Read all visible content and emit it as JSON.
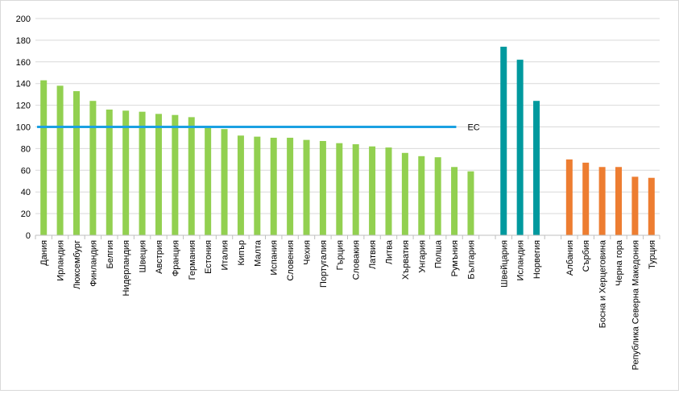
{
  "chart_data": {
    "type": "bar",
    "title": "",
    "xlabel": "",
    "ylabel": "",
    "ylim": [
      0,
      200
    ],
    "yticks": [
      0,
      20,
      40,
      60,
      80,
      100,
      120,
      140,
      160,
      180,
      200
    ],
    "grid": true,
    "legend": "none",
    "groups": [
      {
        "color": "#92d050",
        "categories": [
          "Дания",
          "Ирландия",
          "Люксембург",
          "Финландия",
          "Белгия",
          "Нидерландия",
          "Швеция",
          "Австрия",
          "Франция",
          "Германия",
          "Естония",
          "Италия",
          "Кипър",
          "Малта",
          "Испания",
          "Словения",
          "Чехия",
          "Португалия",
          "Гърция",
          "Словакия",
          "Латвия",
          "Литва",
          "Хърватия",
          "Унгария",
          "Полша",
          "Румъния",
          "България"
        ],
        "values": [
          143,
          138,
          133,
          124,
          116,
          115,
          114,
          112,
          111,
          109,
          100,
          98,
          92,
          91,
          90,
          90,
          88,
          87,
          85,
          84,
          82,
          81,
          76,
          73,
          72,
          63,
          59
        ]
      },
      {
        "color": "#00999e",
        "categories": [
          "Швейцария",
          "Исландия",
          "Норвегия"
        ],
        "values": [
          174,
          162,
          124
        ]
      },
      {
        "color": "#ed7d31",
        "categories": [
          "Албания",
          "Сърбия",
          "Босна и Херцеговина",
          "Черна гора",
          "Република Северна Македония",
          "Турция"
        ],
        "values": [
          70,
          67,
          63,
          63,
          54,
          53
        ]
      }
    ],
    "reference_line": {
      "label": "ЕС",
      "value": 100,
      "color": "#1ba1e2"
    },
    "colors": {
      "grid": "#d9d9d9",
      "axis": "#bfbfbf"
    }
  }
}
